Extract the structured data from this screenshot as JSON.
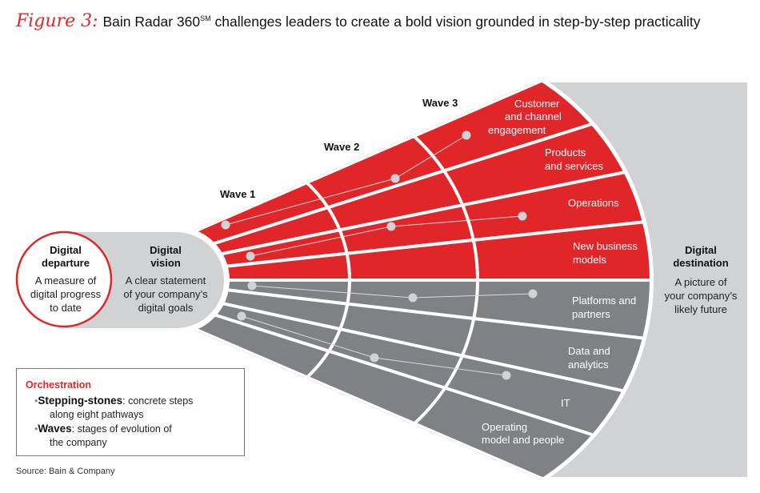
{
  "title": {
    "figure_label": "Figure 3:",
    "text_before": "Bain Radar 360",
    "superscript": "SM",
    "text_after": " challenges leaders to create a bold vision grounded in step-by-step practicality"
  },
  "waves": [
    "Wave 1",
    "Wave 2",
    "Wave 3"
  ],
  "departure": {
    "heading": [
      "Digital",
      "departure"
    ],
    "body": [
      "A measure of",
      "digital progress",
      "to date"
    ]
  },
  "vision": {
    "heading": [
      "Digital",
      "vision"
    ],
    "body": [
      "A clear statement",
      "of your company’s",
      "digital goals"
    ]
  },
  "destination": {
    "heading": [
      "Digital",
      "destination"
    ],
    "body": [
      "A picture of",
      "your company’s",
      "likely future"
    ]
  },
  "pathways": {
    "red": [
      [
        "Customer",
        "and channel",
        "engagement"
      ],
      [
        "Products",
        "and services"
      ],
      [
        "Operations"
      ],
      [
        "New business",
        "models"
      ]
    ],
    "gray": [
      [
        "Platforms and",
        "partners"
      ],
      [
        "Data and",
        "analytics"
      ],
      [
        "IT"
      ],
      [
        "Operating",
        "model and people"
      ]
    ]
  },
  "legend": {
    "heading": "Orchestration",
    "items": [
      {
        "term": "Stepping-stones",
        "text": ": concrete steps",
        "cont": "along eight pathways"
      },
      {
        "term": "Waves",
        "text": ": stages of evolution of",
        "cont": "the company"
      }
    ]
  },
  "source": "Source: Bain & Company",
  "colors": {
    "red": "#e1262a",
    "gray": "#808184",
    "light_gray": "#d1d2d4"
  }
}
